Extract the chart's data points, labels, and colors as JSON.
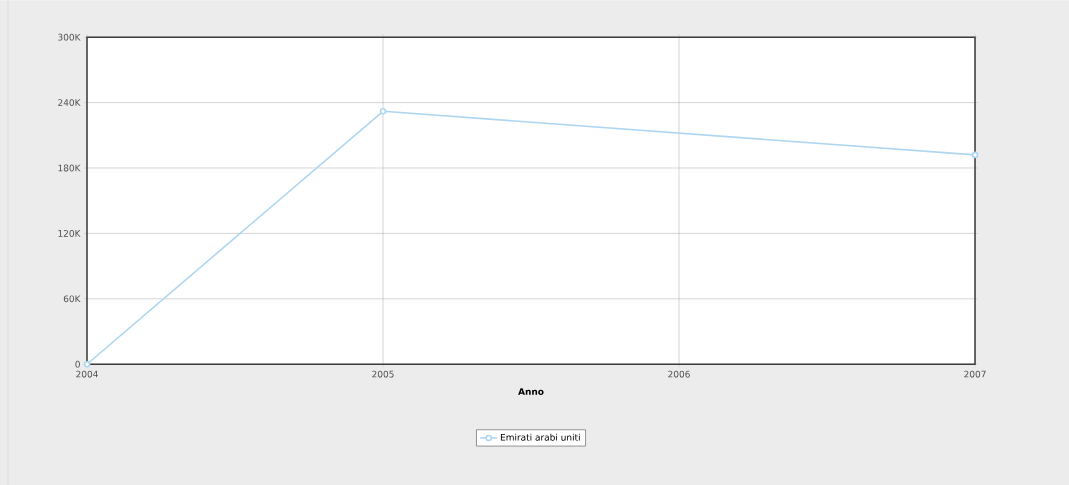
{
  "chart_data": {
    "type": "line",
    "xlabel": "Anno",
    "x": [
      2004,
      2005,
      2007
    ],
    "series": [
      {
        "name": "Emirati arabi uniti",
        "color": "#aed6f1",
        "values": [
          0,
          232000,
          192000
        ]
      }
    ],
    "xlim": [
      2004,
      2007
    ],
    "xticks": [
      2004,
      2005,
      2006,
      2007
    ],
    "ylim": [
      0,
      300000
    ],
    "yticks": [
      {
        "value": 0,
        "label": "0"
      },
      {
        "value": 60000,
        "label": "60K"
      },
      {
        "value": 120000,
        "label": "120K"
      },
      {
        "value": 180000,
        "label": "180K"
      },
      {
        "value": 240000,
        "label": "240K"
      },
      {
        "value": 300000,
        "label": "300K"
      }
    ],
    "grid": true,
    "legend": "bottom",
    "marker": "circle",
    "line_style": "solid"
  }
}
